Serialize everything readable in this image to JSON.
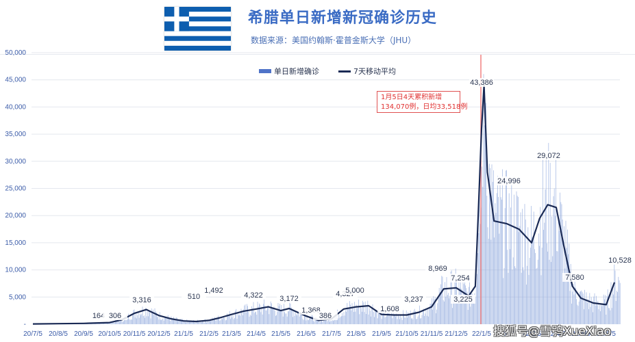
{
  "header": {
    "title": "希腊单日新增新冠确诊历史",
    "subtitle": "数据来源：美国约翰斯·霍普金斯大学（JHU）",
    "flag": "greece-flag"
  },
  "legend": {
    "bar_label": "单日新增确诊",
    "line_label": "7天移动平均"
  },
  "annotation": {
    "line1": "1月5日4天累积新增",
    "line2": "134,070例，日均33,518例"
  },
  "watermark": "搜狐号@雪鸮XueXiao",
  "colors": {
    "bar": "#8fa8dc",
    "line": "#1a2a55",
    "axis_text": "#3a5ba8",
    "title": "#3a6bc4",
    "annotation": "#e03030",
    "marker_line": "#f08080"
  },
  "chart_data": {
    "type": "bar+line",
    "title": "希腊单日新增新冠确诊历史",
    "xlabel": "",
    "ylabel": "",
    "ylim": [
      0,
      50000
    ],
    "grid": true,
    "legend_position": "top-center",
    "y_ticks": [
      "-",
      "5,000",
      "10,000",
      "15,000",
      "20,000",
      "25,000",
      "30,000",
      "35,000",
      "40,000",
      "45,000",
      "50,000"
    ],
    "x_ticks": [
      "20/7/5",
      "20/8/5",
      "20/9/5",
      "20/10/5",
      "20/11/5",
      "20/12/5",
      "21/1/5",
      "21/2/5",
      "21/3/5",
      "21/4/5",
      "21/5/5",
      "21/6/5",
      "21/7/5",
      "21/8/5",
      "21/9/5",
      "21/10/5",
      "21/11/5",
      "21/12/5",
      "22/1/5",
      "22/2/5",
      "22/3/5",
      "22/4/5",
      "22/5/5",
      "22/6/5"
    ],
    "series": [
      {
        "name": "7天移动平均",
        "type": "line",
        "x": [
          "20/7/5",
          "20/8/5",
          "20/9/5",
          "20/10/5",
          "20/10/20",
          "20/11/5",
          "20/11/20",
          "20/12/5",
          "20/12/20",
          "21/1/5",
          "21/1/20",
          "21/2/5",
          "21/2/20",
          "21/3/5",
          "21/3/20",
          "21/4/5",
          "21/4/20",
          "21/5/5",
          "21/5/15",
          "21/5/25",
          "21/6/5",
          "21/6/20",
          "21/7/5",
          "21/7/20",
          "21/8/5",
          "21/8/20",
          "21/9/5",
          "21/9/20",
          "21/10/5",
          "21/10/20",
          "21/11/5",
          "21/11/20",
          "21/12/5",
          "21/12/20",
          "21/12/28",
          "22/1/1",
          "22/1/5",
          "22/1/8",
          "22/1/12",
          "22/1/20",
          "22/2/5",
          "22/2/20",
          "22/3/5",
          "22/3/15",
          "22/3/25",
          "22/4/5",
          "22/4/15",
          "22/4/25",
          "22/5/5",
          "22/5/20",
          "22/6/5",
          "22/6/15"
        ],
        "values": [
          50,
          100,
          150,
          300,
          800,
          2000,
          2700,
          1600,
          1000,
          600,
          500,
          700,
          1200,
          1800,
          2400,
          2800,
          3200,
          2500,
          2900,
          2200,
          1500,
          700,
          1000,
          2800,
          3200,
          3400,
          1800,
          1700,
          1700,
          2200,
          3200,
          6500,
          6700,
          5200,
          7000,
          20000,
          36000,
          44000,
          28000,
          19000,
          18500,
          17500,
          15000,
          19500,
          22000,
          21500,
          14000,
          7000,
          4800,
          3900,
          3600,
          7700
        ]
      },
      {
        "name": "单日新增确诊",
        "type": "bar",
        "note": "daily bars follow the moving average with noise; peak ~40,000 on 22/1/5 marker"
      }
    ],
    "annotations": [
      "164",
      "306",
      "3,316",
      "510",
      "1,492",
      "4,322",
      "3,172",
      "1,368",
      "386",
      "4,327",
      "5,000",
      "1,608",
      "3,237",
      "8,969",
      "7,254",
      "3,225",
      "43,386",
      "24,996",
      "29,072",
      "7,580",
      "10,528"
    ]
  }
}
